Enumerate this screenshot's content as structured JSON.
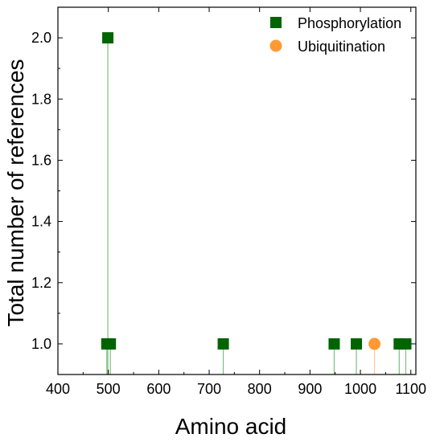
{
  "chart_data": {
    "type": "scatter",
    "title": "",
    "xlabel": "Amino acid",
    "ylabel": "Total number of references",
    "xlim": [
      400,
      1110
    ],
    "ylim": [
      0.9,
      2.1
    ],
    "xticks": [
      400,
      500,
      600,
      700,
      800,
      900,
      1000,
      1100
    ],
    "yticks": [
      1.0,
      1.2,
      1.4,
      1.6,
      1.8,
      2.0
    ],
    "ytick_labels": [
      "1.0",
      "1.2",
      "1.4",
      "1.6",
      "1.8",
      "2.0"
    ],
    "grid": false,
    "legend_position": "top-right",
    "drop_lines": true,
    "series": [
      {
        "name": "Phosphorylation",
        "marker": "square",
        "color": "#006400",
        "line_color": "#7fbf7f",
        "points": [
          {
            "x": 497,
            "y": 1.0
          },
          {
            "x": 499,
            "y": 2.0
          },
          {
            "x": 504,
            "y": 1.0
          },
          {
            "x": 728,
            "y": 1.0
          },
          {
            "x": 948,
            "y": 1.0
          },
          {
            "x": 992,
            "y": 1.0
          },
          {
            "x": 1077,
            "y": 1.0
          },
          {
            "x": 1090,
            "y": 1.0
          }
        ]
      },
      {
        "name": "Ubiquitination",
        "marker": "circle",
        "color": "#ff9933",
        "line_color": "#ffc79a",
        "points": [
          {
            "x": 1028,
            "y": 1.0
          }
        ]
      }
    ]
  }
}
